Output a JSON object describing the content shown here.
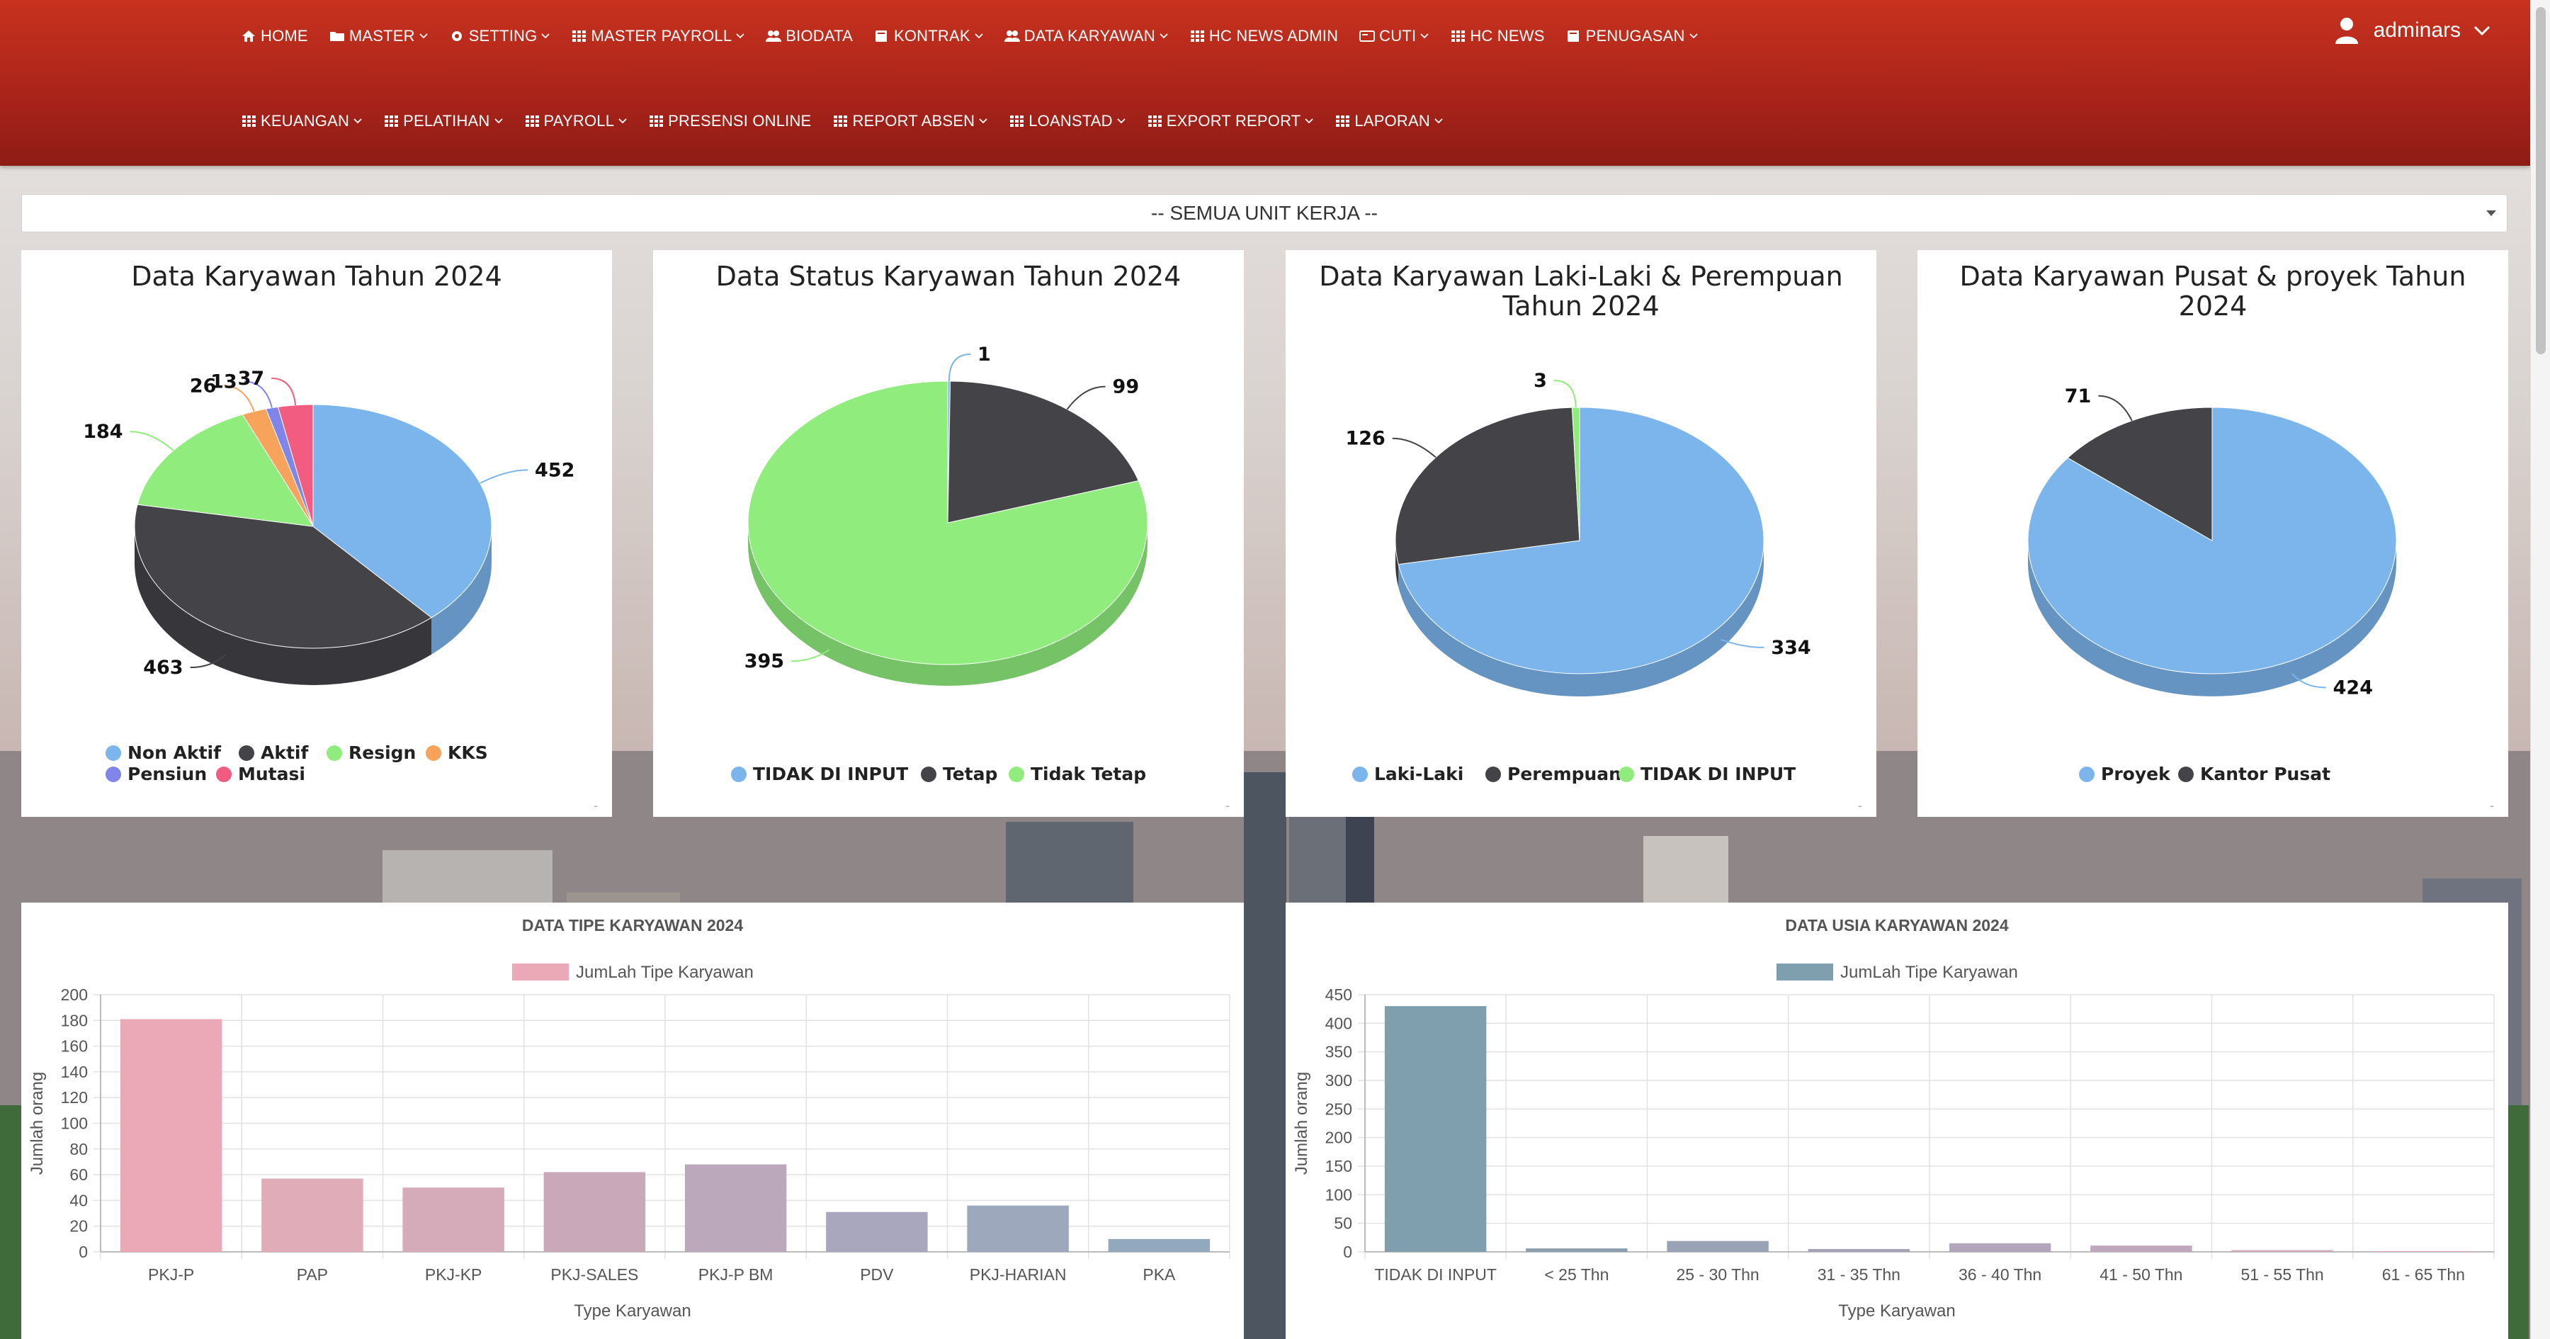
{
  "nav": {
    "row1": [
      {
        "label": "HOME",
        "icon": "home-icon",
        "caret": false
      },
      {
        "label": "MASTER",
        "icon": "folder-icon",
        "caret": true
      },
      {
        "label": "SETTING",
        "icon": "gear-icon",
        "caret": true
      },
      {
        "label": "MASTER PAYROLL",
        "icon": "grid-icon",
        "caret": true
      },
      {
        "label": "BIODATA",
        "icon": "users-icon",
        "caret": false
      },
      {
        "label": "KONTRAK",
        "icon": "book-icon",
        "caret": true
      },
      {
        "label": "DATA KARYAWAN",
        "icon": "users-icon",
        "caret": true
      },
      {
        "label": "HC NEWS ADMIN",
        "icon": "grid-icon",
        "caret": false
      },
      {
        "label": "CUTI",
        "icon": "card-icon",
        "caret": true
      },
      {
        "label": "HC NEWS",
        "icon": "grid-icon",
        "caret": false
      },
      {
        "label": "PENUGASAN",
        "icon": "book-icon",
        "caret": true
      }
    ],
    "row2": [
      {
        "label": "KEUANGAN",
        "icon": "grid-icon",
        "caret": true
      },
      {
        "label": "PELATIHAN",
        "icon": "grid-icon",
        "caret": true
      },
      {
        "label": "PAYROLL",
        "icon": "grid-icon",
        "caret": true
      },
      {
        "label": "PRESENSI ONLINE",
        "icon": "grid-icon",
        "caret": false
      },
      {
        "label": "REPORT ABSEN",
        "icon": "grid-icon",
        "caret": true
      },
      {
        "label": "LOANSTAD",
        "icon": "grid-icon",
        "caret": true
      },
      {
        "label": "EXPORT REPORT",
        "icon": "grid-icon",
        "caret": true
      },
      {
        "label": "LAPORAN",
        "icon": "grid-icon",
        "caret": true
      }
    ],
    "user": "adminars"
  },
  "unit_select": {
    "value": "-- SEMUA UNIT KERJA --"
  },
  "chart_data": [
    {
      "type": "pie",
      "title": [
        "Data Karyawan Tahun 2024"
      ],
      "categories": [
        "Non Aktif",
        "Aktif",
        "Resign",
        "KKS",
        "Pensiun",
        "Mutasi"
      ],
      "values": [
        452,
        463,
        184,
        26,
        13,
        37
      ],
      "colors": [
        "#7cb5ec",
        "#434348",
        "#90ed7d",
        "#f7a35c",
        "#8085e9",
        "#f15c80"
      ]
    },
    {
      "type": "pie",
      "title": [
        "Data Status Karyawan Tahun 2024"
      ],
      "categories": [
        "TIDAK DI INPUT",
        "Tetap",
        "Tidak Tetap"
      ],
      "values": [
        1,
        99,
        395
      ],
      "colors": [
        "#7cb5ec",
        "#434348",
        "#90ed7d"
      ]
    },
    {
      "type": "pie",
      "title": [
        "Data Karyawan Laki-Laki & Perempuan",
        "Tahun 2024"
      ],
      "categories": [
        "Laki-Laki",
        "Perempuan",
        "TIDAK DI INPUT"
      ],
      "values": [
        334,
        126,
        3
      ],
      "colors": [
        "#7cb5ec",
        "#434348",
        "#90ed7d"
      ]
    },
    {
      "type": "pie",
      "title": [
        "Data Karyawan Pusat & proyek Tahun",
        "2024"
      ],
      "categories": [
        "Proyek",
        "Kantor Pusat"
      ],
      "values": [
        424,
        71
      ],
      "colors": [
        "#7cb5ec",
        "#434348"
      ]
    },
    {
      "type": "bar",
      "title": "DATA TIPE KARYAWAN 2024",
      "legend": "JumLah Tipe Karyawan",
      "categories": [
        "PKJ-P",
        "PAP",
        "PKJ-KP",
        "PKJ-SALES",
        "PKJ-P BM",
        "PDV",
        "PKJ-HARIAN",
        "PKA"
      ],
      "values": [
        181,
        57,
        50,
        62,
        68,
        31,
        36,
        10
      ],
      "colors": [
        "#eba9b8",
        "#e0acb8",
        "#d5aab9",
        "#c9a8ba",
        "#bba8bb",
        "#a8a7be",
        "#9ea8bd",
        "#92a9bd"
      ],
      "xlabel": "Type Karyawan",
      "ylabel": "Jumlah orang",
      "ylim": [
        0,
        200
      ],
      "ytick_step": 20
    },
    {
      "type": "bar",
      "title": "DATA USIA KARYAWAN 2024",
      "legend": "JumLah Tipe Karyawan",
      "categories": [
        "TIDAK DI INPUT",
        "< 25 Thn",
        "25 - 30 Thn",
        "31 - 35 Thn",
        "36 - 40 Thn",
        "41 - 50 Thn",
        "51 - 55 Thn",
        "61 - 65 Thn"
      ],
      "values": [
        430,
        6,
        19,
        5,
        15,
        11,
        3,
        1
      ],
      "colors": [
        "#7f9fae",
        "#8aa0b0",
        "#9aa2b5",
        "#a6a3b8",
        "#b3a6bb",
        "#c0a8bc",
        "#cfaabb",
        "#dcaab8"
      ],
      "xlabel": "Type Karyawan",
      "ylabel": "Jumlah orang",
      "ylim": [
        0,
        450
      ],
      "ytick_step": 50
    }
  ],
  "colors": {
    "navbar": "#b12a1b",
    "panel": "#ffffff"
  }
}
